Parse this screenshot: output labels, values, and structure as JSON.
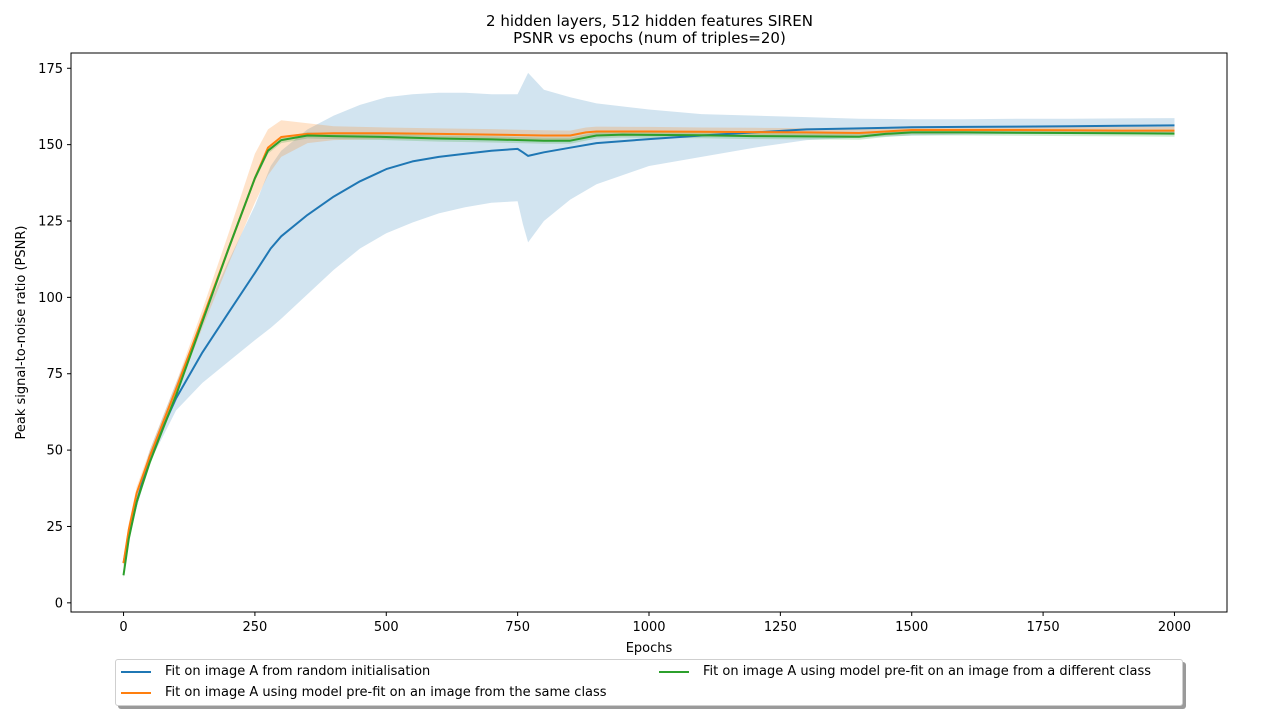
{
  "chart_data": {
    "type": "line",
    "title": "2 hidden layers, 512 hidden features SIREN",
    "subtitle": "PSNR vs epochs (num of triples=20)",
    "xlabel": "Epochs",
    "ylabel": "Peak signal-to-noise ratio (PSNR)",
    "xlim": [
      -100,
      2100
    ],
    "ylim": [
      -3,
      180
    ],
    "xticks": [
      0,
      250,
      500,
      750,
      1000,
      1250,
      1500,
      1750,
      2000
    ],
    "yticks": [
      0,
      25,
      50,
      75,
      100,
      125,
      150,
      175
    ],
    "grid": false,
    "legend_position": "bottom-center (outside)",
    "series": [
      {
        "name": "Fit on image A from random initialisation",
        "color": "#1f77b4",
        "band_color": "#1f77b4",
        "x": [
          0,
          10,
          25,
          50,
          100,
          150,
          200,
          250,
          280,
          300,
          350,
          400,
          450,
          500,
          550,
          600,
          650,
          700,
          750,
          760,
          770,
          800,
          850,
          900,
          1000,
          1100,
          1200,
          1300,
          1400,
          1500,
          1600,
          1700,
          1800,
          1900,
          2000
        ],
        "values": [
          13,
          22,
          33,
          48,
          67,
          82,
          95,
          108,
          116,
          120,
          127,
          133,
          138,
          142,
          144.5,
          146,
          147,
          148,
          148.6,
          147.5,
          146.3,
          147.5,
          149,
          150.5,
          151.8,
          153,
          154,
          155,
          155.3,
          155.7,
          155.8,
          155.9,
          156,
          156.2,
          156.3
        ],
        "lower": [
          12,
          20,
          31,
          46,
          63,
          72,
          79,
          86,
          90,
          93,
          101,
          109,
          116,
          121,
          124.5,
          127.5,
          129.5,
          131,
          131.5,
          124,
          118,
          125,
          132,
          137,
          143,
          146,
          149,
          151.5,
          152.3,
          153,
          153.3,
          153.5,
          153.6,
          153.7,
          153.8
        ],
        "upper": [
          14,
          24,
          35,
          50,
          72,
          93,
          112,
          130,
          143,
          148,
          155,
          159.5,
          163,
          165.5,
          166.5,
          167,
          167,
          166.5,
          166.5,
          170,
          173.5,
          168,
          165.5,
          163.5,
          161.5,
          160,
          159.5,
          159,
          158.5,
          158.3,
          158.3,
          158.5,
          158.5,
          158.6,
          158.7
        ]
      },
      {
        "name": "Fit on image A using model pre-fit on an image from the same class",
        "color": "#ff7f0e",
        "band_color": "#ff7f0e",
        "x": [
          0,
          10,
          25,
          50,
          100,
          150,
          200,
          250,
          275,
          300,
          350,
          400,
          500,
          600,
          700,
          800,
          850,
          880,
          900,
          1000,
          1100,
          1200,
          1300,
          1400,
          1450,
          1500,
          1600,
          1700,
          1800,
          1900,
          2000
        ],
        "values": [
          13,
          24,
          36,
          48,
          70,
          93,
          116,
          139,
          149,
          152.5,
          153.5,
          153.7,
          153.7,
          153.5,
          153.3,
          153,
          153,
          154,
          154.3,
          154.3,
          154.2,
          154.1,
          154,
          153.8,
          154.3,
          154.8,
          154.8,
          154.8,
          154.7,
          154.6,
          154.6
        ],
        "lower": [
          11,
          22,
          34,
          46,
          68,
          90,
          111,
          131,
          140,
          146,
          150.5,
          151.5,
          151.8,
          151.7,
          151.5,
          151.3,
          151.4,
          152.4,
          152.7,
          152.8,
          152.8,
          152.7,
          152.6,
          152.4,
          153,
          153.5,
          153.6,
          153.6,
          153.5,
          153.4,
          153.4
        ],
        "upper": [
          15,
          26,
          38,
          50,
          72,
          96,
          121,
          147,
          155,
          158,
          157,
          156,
          155.6,
          155.3,
          155.1,
          154.7,
          154.6,
          155.6,
          155.9,
          155.8,
          155.6,
          155.5,
          155.4,
          155.2,
          155.6,
          156,
          156,
          156,
          155.9,
          155.8,
          155.8
        ]
      },
      {
        "name": "Fit on image A using model pre-fit on an image from a different class",
        "color": "#2ca02c",
        "band_color": "#2ca02c",
        "x": [
          0,
          10,
          25,
          50,
          100,
          150,
          200,
          250,
          275,
          300,
          350,
          400,
          500,
          600,
          700,
          800,
          850,
          900,
          950,
          1000,
          1100,
          1200,
          1300,
          1400,
          1450,
          1500,
          1600,
          1700,
          1800,
          1900,
          2000
        ],
        "values": [
          9,
          21,
          33,
          46,
          68,
          92,
          116,
          139,
          148,
          151.5,
          153,
          152.8,
          152.5,
          152,
          151.7,
          151.3,
          151.3,
          153,
          153.3,
          153.2,
          153.1,
          152.8,
          152.7,
          152.6,
          153.5,
          154,
          154,
          153.9,
          153.8,
          153.7,
          153.6
        ],
        "lower": [
          8,
          20,
          32,
          45,
          67,
          91,
          115,
          138,
          147,
          150.5,
          152,
          151.8,
          151.5,
          151,
          150.7,
          150.3,
          150.3,
          152,
          152.3,
          152.2,
          152.1,
          151.8,
          151.7,
          151.6,
          152.5,
          153,
          153,
          152.9,
          152.8,
          152.7,
          152.6
        ],
        "upper": [
          10,
          22,
          34,
          47,
          69,
          93,
          117,
          140,
          149,
          152.5,
          154,
          153.8,
          153.5,
          153,
          152.7,
          152.3,
          152.3,
          154,
          154.3,
          154.2,
          154.1,
          153.8,
          153.7,
          153.6,
          154.5,
          155,
          155,
          154.9,
          154.8,
          154.7,
          154.6
        ]
      }
    ]
  }
}
